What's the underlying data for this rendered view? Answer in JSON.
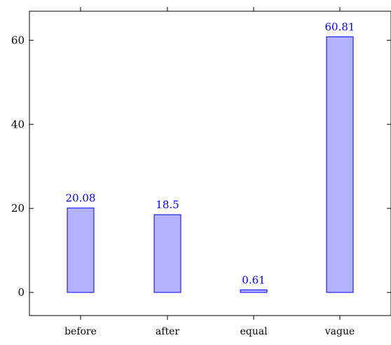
{
  "chart_data": {
    "type": "bar",
    "title": "",
    "xlabel": "",
    "ylabel": "",
    "categories": [
      "before",
      "after",
      "equal",
      "vague"
    ],
    "values": [
      20.08,
      18.5,
      0.61,
      60.81
    ],
    "value_labels": [
      "20.08",
      "18.5",
      "0.61",
      "60.81"
    ],
    "yticks": [
      0,
      20,
      40,
      60
    ],
    "ytick_labels": [
      "0",
      "20",
      "40",
      "60"
    ],
    "ylim": [
      -5.5,
      66.9
    ],
    "grid": false,
    "legend": "none",
    "colors": {
      "bar_fill": "#b3b3ff",
      "bar_stroke": "#0000ff",
      "label_color": "#0000ff",
      "axis_color": "#000000",
      "tick_label_color": "#000000"
    }
  }
}
